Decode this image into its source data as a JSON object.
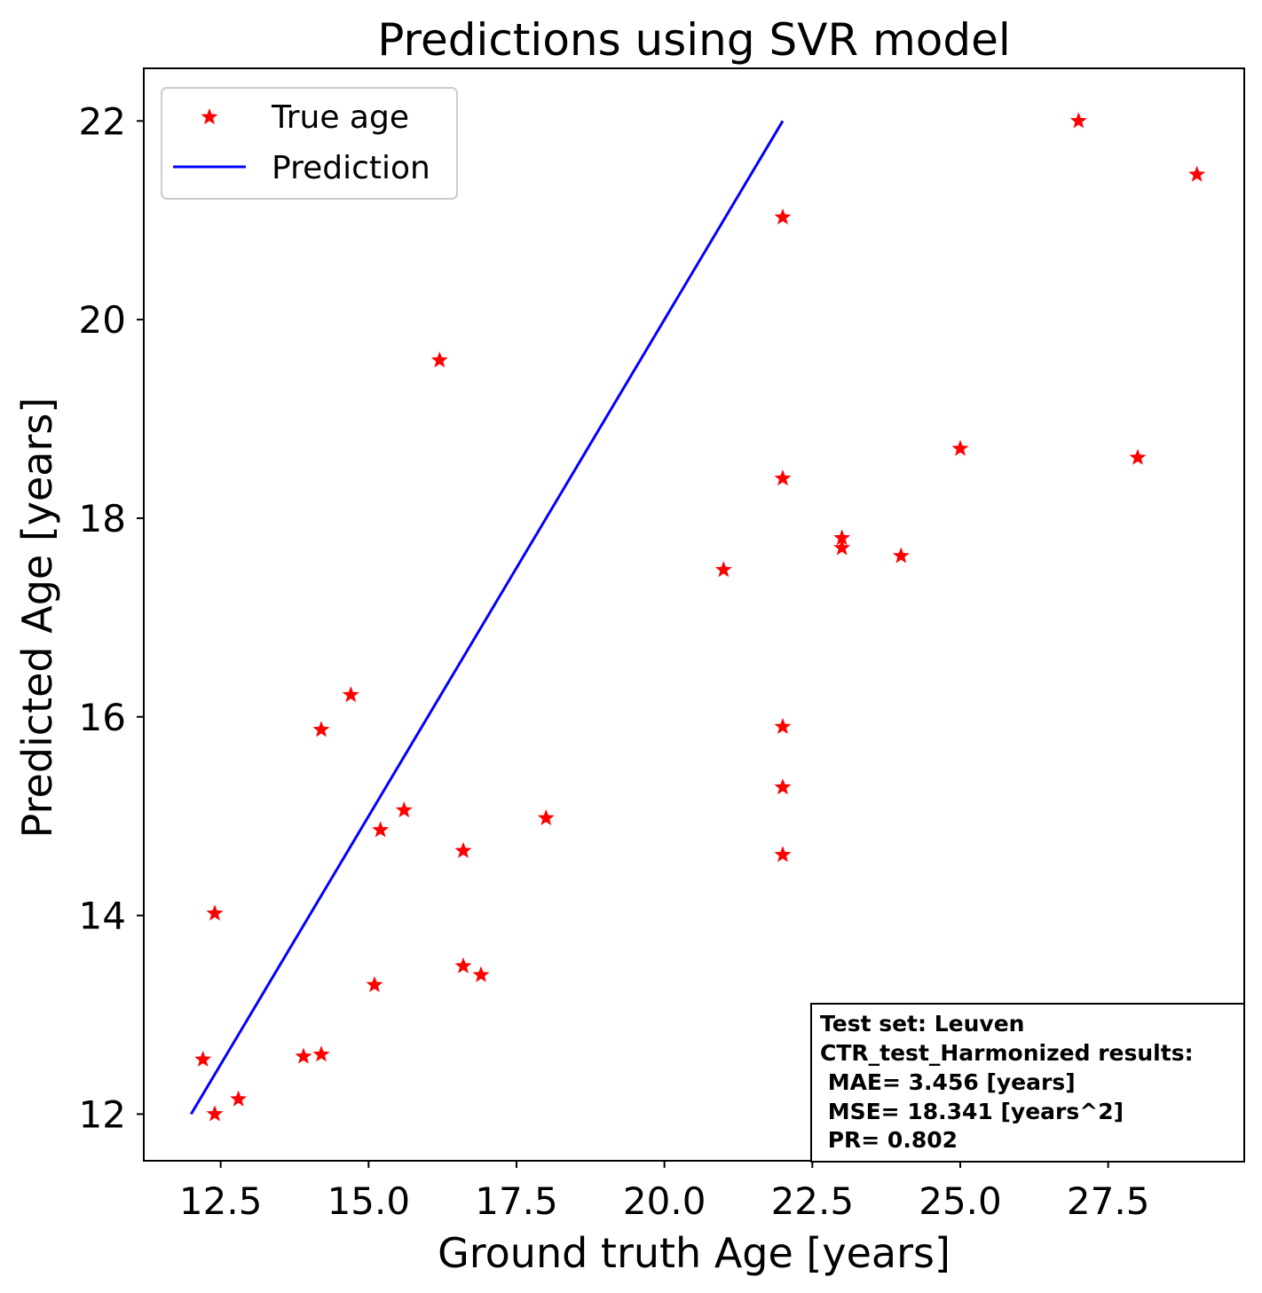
{
  "chart_data": {
    "type": "scatter",
    "title": "Predictions using SVR model",
    "xlabel": "Ground truth Age [years]",
    "ylabel": "Predicted Age [years]",
    "xlim": [
      11.2,
      29.8
    ],
    "ylim": [
      11.53,
      22.53
    ],
    "xticks": [
      12.5,
      15.0,
      17.5,
      20.0,
      22.5,
      25.0,
      27.5
    ],
    "xtick_labels": [
      "12.5",
      "15.0",
      "17.5",
      "20.0",
      "22.5",
      "25.0",
      "27.5"
    ],
    "yticks": [
      12,
      14,
      16,
      18,
      20,
      22
    ],
    "ytick_labels": [
      "12",
      "14",
      "16",
      "18",
      "20",
      "22"
    ],
    "grid": false,
    "legend_position": "top-left",
    "series": [
      {
        "name": "True age",
        "kind": "scatter",
        "marker": "star",
        "color": "#ff0000",
        "points": [
          [
            12.2,
            12.55
          ],
          [
            12.4,
            12.0
          ],
          [
            12.8,
            12.15
          ],
          [
            12.4,
            14.02
          ],
          [
            13.9,
            12.58
          ],
          [
            14.2,
            12.6
          ],
          [
            14.2,
            15.87
          ],
          [
            14.7,
            16.22
          ],
          [
            15.1,
            13.3
          ],
          [
            15.2,
            14.86
          ],
          [
            15.6,
            15.06
          ],
          [
            16.2,
            19.59
          ],
          [
            16.6,
            14.65
          ],
          [
            16.6,
            13.49
          ],
          [
            16.9,
            13.4
          ],
          [
            18.0,
            14.98
          ],
          [
            21.0,
            17.48
          ],
          [
            22.0,
            21.03
          ],
          [
            22.0,
            18.4
          ],
          [
            22.0,
            15.9
          ],
          [
            22.0,
            15.29
          ],
          [
            22.0,
            14.61
          ],
          [
            23.0,
            17.8
          ],
          [
            23.0,
            17.7
          ],
          [
            24.0,
            17.62
          ],
          [
            25.0,
            18.7
          ],
          [
            27.0,
            22.0
          ],
          [
            28.0,
            18.61
          ],
          [
            29.0,
            21.46
          ]
        ]
      },
      {
        "name": "Prediction",
        "kind": "line",
        "color": "#0000ff",
        "points": [
          [
            12.0,
            12.0
          ],
          [
            22.0,
            22.0
          ]
        ]
      }
    ],
    "annotation": {
      "lines": [
        "Test set: Leuven",
        "CTR_test_Harmonized results:",
        " MAE= 3.456 [years]",
        " MSE= 18.341 [years^2]",
        " PR= 0.802"
      ]
    }
  }
}
